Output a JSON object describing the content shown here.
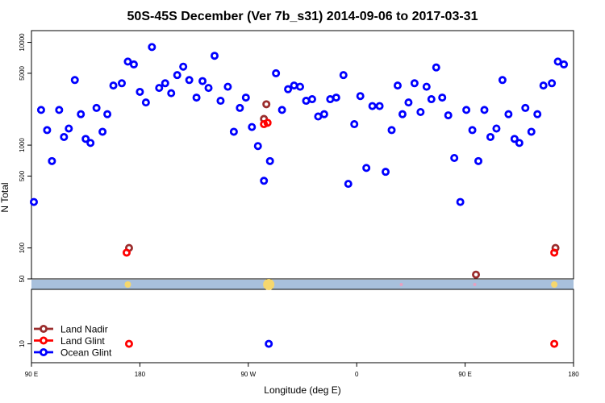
{
  "chart_data": {
    "type": "scatter",
    "title": "50S-45S December (Ver 7b_s31)   2014-09-06 to 2017-03-31",
    "xlabel": "Longitude (deg E)",
    "ylabel": "N Total",
    "x_scale": "linear",
    "y_scale": "log",
    "xlim": [
      90,
      540
    ],
    "x_ticks": [
      {
        "value": 90,
        "label": "90 E"
      },
      {
        "value": 180,
        "label": "180"
      },
      {
        "value": 270,
        "label": "90 W"
      },
      {
        "value": 360,
        "label": "0"
      },
      {
        "value": 450,
        "label": "90 E"
      },
      {
        "value": 540,
        "label": "180"
      }
    ],
    "top_panel": {
      "ylim": [
        50,
        13000
      ],
      "y_ticks": [
        {
          "value": 50,
          "label": "50"
        },
        {
          "value": 100,
          "label": "100"
        },
        {
          "value": 500,
          "label": "500"
        },
        {
          "value": 1000,
          "label": "1000"
        },
        {
          "value": 5000,
          "label": "5000"
        },
        {
          "value": 10000,
          "label": "10000"
        }
      ]
    },
    "bottom_panel": {
      "ylim": [
        7,
        28
      ],
      "y_ticks": [
        {
          "value": 10,
          "label": "10"
        }
      ],
      "band_color": "#a8c0dc"
    },
    "legend_position": "bottom-left",
    "series": [
      {
        "name": "Land Nadir",
        "color": "#9b2d2d",
        "points": [
          [
            171,
            100
          ],
          [
            283,
            1800
          ],
          [
            285,
            2500
          ],
          [
            459,
            55
          ],
          [
            525,
            100
          ]
        ]
      },
      {
        "name": "Land Glint",
        "color": "#ff0000",
        "points": [
          [
            169,
            90
          ],
          [
            283,
            1600
          ],
          [
            286,
            1650
          ],
          [
            524,
            90
          ],
          [
            171,
            10
          ],
          [
            524,
            10
          ]
        ]
      },
      {
        "name": "Ocean Glint",
        "color": "#0000ff",
        "points": [
          [
            92,
            280
          ],
          [
            98,
            2200
          ],
          [
            103,
            1400
          ],
          [
            107,
            700
          ],
          [
            113,
            2200
          ],
          [
            117,
            1200
          ],
          [
            121,
            1450
          ],
          [
            126,
            4300
          ],
          [
            131,
            2000
          ],
          [
            135,
            1150
          ],
          [
            139,
            1050
          ],
          [
            144,
            2300
          ],
          [
            149,
            1350
          ],
          [
            153,
            2000
          ],
          [
            158,
            3800
          ],
          [
            165,
            4000
          ],
          [
            170,
            6500
          ],
          [
            175,
            6100
          ],
          [
            180,
            3300
          ],
          [
            185,
            2600
          ],
          [
            190,
            9000
          ],
          [
            196,
            3600
          ],
          [
            201,
            4000
          ],
          [
            206,
            3200
          ],
          [
            211,
            4800
          ],
          [
            216,
            5800
          ],
          [
            221,
            4300
          ],
          [
            227,
            2900
          ],
          [
            232,
            4200
          ],
          [
            237,
            3600
          ],
          [
            242,
            7400
          ],
          [
            247,
            2700
          ],
          [
            253,
            3700
          ],
          [
            258,
            1350
          ],
          [
            263,
            2300
          ],
          [
            268,
            2900
          ],
          [
            273,
            1500
          ],
          [
            278,
            980
          ],
          [
            283,
            450
          ],
          [
            288,
            700
          ],
          [
            293,
            5000
          ],
          [
            298,
            2200
          ],
          [
            303,
            3500
          ],
          [
            308,
            3800
          ],
          [
            313,
            3700
          ],
          [
            318,
            2700
          ],
          [
            323,
            2800
          ],
          [
            328,
            1900
          ],
          [
            333,
            2000
          ],
          [
            338,
            2800
          ],
          [
            343,
            2900
          ],
          [
            349,
            4800
          ],
          [
            353,
            420
          ],
          [
            358,
            1600
          ],
          [
            363,
            3000
          ],
          [
            368,
            600
          ],
          [
            373,
            2400
          ],
          [
            379,
            2400
          ],
          [
            384,
            550
          ],
          [
            389,
            1400
          ],
          [
            394,
            3800
          ],
          [
            398,
            2000
          ],
          [
            403,
            2600
          ],
          [
            408,
            4000
          ],
          [
            413,
            2100
          ],
          [
            418,
            3700
          ],
          [
            422,
            2800
          ],
          [
            426,
            5700
          ],
          [
            431,
            2900
          ],
          [
            436,
            1950
          ],
          [
            441,
            750
          ],
          [
            446,
            280
          ],
          [
            451,
            2200
          ],
          [
            456,
            1400
          ],
          [
            461,
            700
          ],
          [
            466,
            2200
          ],
          [
            471,
            1200
          ],
          [
            476,
            1450
          ],
          [
            481,
            4300
          ],
          [
            486,
            2000
          ],
          [
            491,
            1150
          ],
          [
            495,
            1050
          ],
          [
            500,
            2300
          ],
          [
            505,
            1350
          ],
          [
            510,
            2000
          ],
          [
            515,
            3800
          ],
          [
            522,
            4000
          ],
          [
            527,
            6500
          ],
          [
            532,
            6100
          ],
          [
            287,
            10
          ]
        ]
      }
    ]
  }
}
